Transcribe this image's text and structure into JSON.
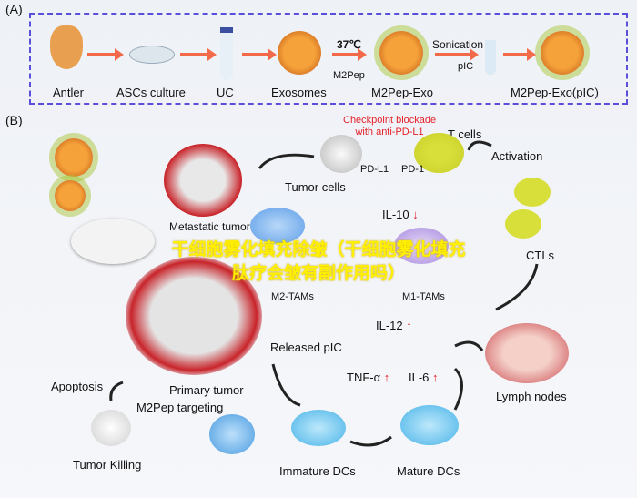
{
  "panel_a": {
    "label": "(A)",
    "steps": [
      "Antler",
      "ASCs culture",
      "UC",
      "Exosomes",
      "M2Pep-Exo",
      "M2Pep-Exo(pIC)"
    ],
    "temp": "37℃",
    "m2pep": "M2Pep",
    "sonication": "Sonication",
    "pic": "pIC"
  },
  "panel_b": {
    "label": "(B)",
    "checkpoint": "Checkpoint blockade\nwith anti-PD-L1",
    "t_cells": "T cells",
    "pd_l1": "PD-L1",
    "pd_1": "PD-1",
    "tumor_cells": "Tumor cells",
    "activation": "Activation",
    "metastatic_tumor": "Metastatic tumor",
    "il10": "IL-10",
    "m2_tams": "M2-TAMs",
    "m1_tams": "M1-TAMs",
    "ctls": "CTLs",
    "il12": "IL-12",
    "released_pic": "Released pIC",
    "tnf": "TNF-α",
    "il6": "IL-6",
    "apoptosis": "Apoptosis",
    "primary_tumor": "Primary tumor",
    "m2pep_targeting": "M2Pep targeting",
    "lymph_nodes": "Lymph nodes",
    "tumor_killing": "Tumor Killing",
    "immature_dcs": "Immature DCs",
    "mature_dcs": "Mature DCs"
  },
  "watermark": "干细胞雾化填充除皱（干细胞雾化填充肽疗会皱有副作用吗）",
  "colors": {
    "dashed_border": "#5a4fd8",
    "arrow": "#f26a4a",
    "highlight_red": "#e5202a",
    "watermark": "#fff000"
  }
}
